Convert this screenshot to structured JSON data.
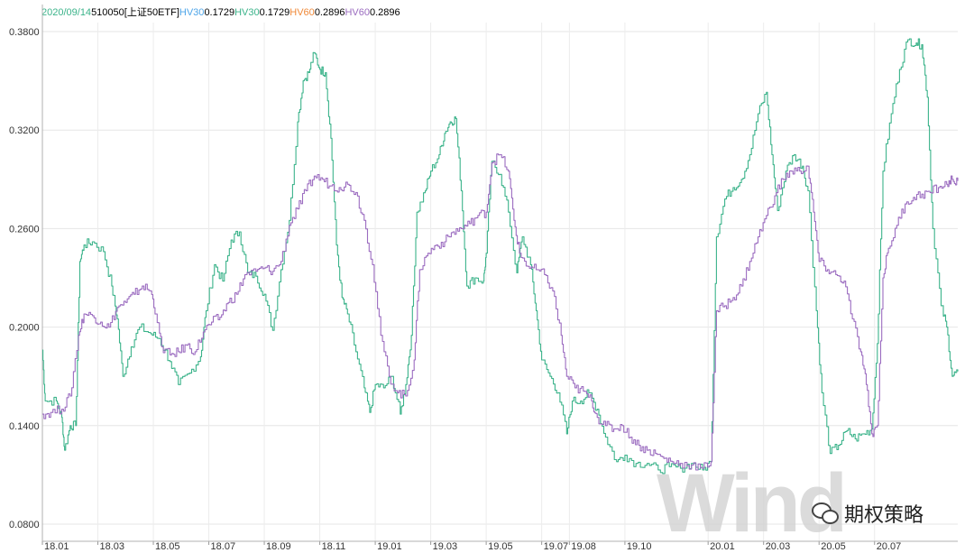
{
  "legend": {
    "date": "2020/09/14",
    "security": "510050[上证50ETF]",
    "items": [
      {
        "label": "HV30",
        "value": "0.1729",
        "label_color": "#4ea5e8"
      },
      {
        "label": "HV30",
        "value": "0.1729",
        "label_color": "#3bb38a"
      },
      {
        "label": "HV60",
        "value": "0.2896",
        "label_color": "#f08a3a"
      },
      {
        "label": "HV60",
        "value": "0.2896",
        "label_color": "#9b6cc0"
      }
    ],
    "date_color": "#3bb38a"
  },
  "chart_data": {
    "type": "line",
    "title": "",
    "xlabel": "",
    "ylabel": "",
    "ylim": [
      0.08,
      0.38
    ],
    "xlim": [
      0,
      33
    ],
    "y_ticks": [
      "0.0800",
      "0.1400",
      "0.2000",
      "0.2600",
      "0.3200",
      "0.3800"
    ],
    "x_ticks": [
      {
        "label": "18.01",
        "x": 0
      },
      {
        "label": "18.03",
        "x": 2
      },
      {
        "label": "18.05",
        "x": 4
      },
      {
        "label": "18.07",
        "x": 6
      },
      {
        "label": "18.09",
        "x": 8
      },
      {
        "label": "18.11",
        "x": 10
      },
      {
        "label": "19.01",
        "x": 12
      },
      {
        "label": "19.03",
        "x": 14
      },
      {
        "label": "19.05",
        "x": 16
      },
      {
        "label": "19.07",
        "x": 18
      },
      {
        "label": "19.08",
        "x": 19
      },
      {
        "label": "19.10",
        "x": 21
      },
      {
        "label": "20.01",
        "x": 24
      },
      {
        "label": "20.03",
        "x": 26
      },
      {
        "label": "20.05",
        "x": 28
      },
      {
        "label": "20.07",
        "x": 30
      }
    ],
    "grid": true,
    "series": [
      {
        "name": "HV30",
        "color": "#3bb38a",
        "points": [
          [
            0.0,
            0.186
          ],
          [
            0.1,
            0.155
          ],
          [
            0.5,
            0.155
          ],
          [
            0.7,
            0.145
          ],
          [
            0.8,
            0.125
          ],
          [
            1.0,
            0.14
          ],
          [
            1.2,
            0.14
          ],
          [
            1.35,
            0.24
          ],
          [
            1.5,
            0.25
          ],
          [
            1.8,
            0.252
          ],
          [
            2.2,
            0.246
          ],
          [
            2.5,
            0.225
          ],
          [
            2.7,
            0.205
          ],
          [
            2.9,
            0.17
          ],
          [
            3.2,
            0.188
          ],
          [
            3.5,
            0.2
          ],
          [
            3.9,
            0.196
          ],
          [
            4.2,
            0.193
          ],
          [
            4.6,
            0.179
          ],
          [
            4.9,
            0.165
          ],
          [
            5.3,
            0.172
          ],
          [
            5.7,
            0.182
          ],
          [
            5.9,
            0.21
          ],
          [
            6.2,
            0.238
          ],
          [
            6.5,
            0.228
          ],
          [
            6.8,
            0.253
          ],
          [
            7.1,
            0.258
          ],
          [
            7.4,
            0.233
          ],
          [
            7.7,
            0.231
          ],
          [
            8.0,
            0.22
          ],
          [
            8.3,
            0.198
          ],
          [
            8.6,
            0.235
          ],
          [
            8.9,
            0.265
          ],
          [
            9.2,
            0.325
          ],
          [
            9.4,
            0.35
          ],
          [
            9.6,
            0.355
          ],
          [
            9.8,
            0.367
          ],
          [
            10.0,
            0.357
          ],
          [
            10.2,
            0.355
          ],
          [
            10.4,
            0.315
          ],
          [
            10.6,
            0.25
          ],
          [
            10.8,
            0.218
          ],
          [
            11.0,
            0.208
          ],
          [
            11.3,
            0.185
          ],
          [
            11.6,
            0.163
          ],
          [
            11.8,
            0.148
          ],
          [
            12.0,
            0.165
          ],
          [
            12.3,
            0.163
          ],
          [
            12.6,
            0.17
          ],
          [
            12.9,
            0.147
          ],
          [
            13.1,
            0.165
          ],
          [
            13.3,
            0.195
          ],
          [
            13.5,
            0.27
          ],
          [
            13.8,
            0.283
          ],
          [
            14.0,
            0.295
          ],
          [
            14.3,
            0.305
          ],
          [
            14.5,
            0.318
          ],
          [
            14.7,
            0.325
          ],
          [
            14.9,
            0.327
          ],
          [
            15.1,
            0.283
          ],
          [
            15.3,
            0.225
          ],
          [
            15.6,
            0.23
          ],
          [
            15.9,
            0.228
          ],
          [
            16.0,
            0.245
          ],
          [
            16.2,
            0.301
          ],
          [
            16.5,
            0.293
          ],
          [
            16.8,
            0.27
          ],
          [
            17.1,
            0.233
          ],
          [
            17.3,
            0.255
          ],
          [
            17.6,
            0.238
          ],
          [
            17.8,
            0.21
          ],
          [
            18.0,
            0.18
          ],
          [
            18.3,
            0.17
          ],
          [
            18.6,
            0.16
          ],
          [
            18.9,
            0.135
          ],
          [
            19.1,
            0.155
          ],
          [
            19.4,
            0.155
          ],
          [
            19.7,
            0.16
          ],
          [
            20.0,
            0.15
          ],
          [
            20.3,
            0.133
          ],
          [
            20.7,
            0.118
          ],
          [
            21.0,
            0.122
          ],
          [
            21.4,
            0.117
          ],
          [
            21.8,
            0.117
          ],
          [
            22.2,
            0.113
          ],
          [
            22.6,
            0.115
          ],
          [
            23.0,
            0.114
          ],
          [
            23.4,
            0.117
          ],
          [
            23.8,
            0.113
          ],
          [
            24.1,
            0.118
          ],
          [
            24.3,
            0.255
          ],
          [
            24.6,
            0.278
          ],
          [
            24.9,
            0.285
          ],
          [
            25.2,
            0.29
          ],
          [
            25.5,
            0.305
          ],
          [
            25.8,
            0.33
          ],
          [
            26.1,
            0.343
          ],
          [
            26.3,
            0.305
          ],
          [
            26.5,
            0.271
          ],
          [
            26.8,
            0.295
          ],
          [
            27.1,
            0.305
          ],
          [
            27.4,
            0.298
          ],
          [
            27.6,
            0.283
          ],
          [
            27.9,
            0.21
          ],
          [
            28.1,
            0.16
          ],
          [
            28.4,
            0.123
          ],
          [
            28.7,
            0.128
          ],
          [
            29.0,
            0.137
          ],
          [
            29.3,
            0.132
          ],
          [
            29.6,
            0.135
          ],
          [
            29.9,
            0.138
          ],
          [
            30.1,
            0.19
          ],
          [
            30.3,
            0.295
          ],
          [
            30.6,
            0.33
          ],
          [
            30.9,
            0.357
          ],
          [
            31.2,
            0.375
          ],
          [
            31.5,
            0.373
          ],
          [
            31.7,
            0.372
          ],
          [
            31.9,
            0.34
          ],
          [
            32.1,
            0.26
          ],
          [
            32.4,
            0.213
          ],
          [
            32.6,
            0.2
          ],
          [
            32.8,
            0.17
          ],
          [
            33.0,
            0.173
          ]
        ]
      },
      {
        "name": "HV60",
        "color": "#9b6cc0",
        "points": [
          [
            0.0,
            0.147
          ],
          [
            0.3,
            0.148
          ],
          [
            0.7,
            0.15
          ],
          [
            1.0,
            0.158
          ],
          [
            1.3,
            0.195
          ],
          [
            1.5,
            0.208
          ],
          [
            1.8,
            0.207
          ],
          [
            2.1,
            0.203
          ],
          [
            2.4,
            0.2
          ],
          [
            2.7,
            0.212
          ],
          [
            3.0,
            0.215
          ],
          [
            3.3,
            0.22
          ],
          [
            3.6,
            0.225
          ],
          [
            3.9,
            0.222
          ],
          [
            4.1,
            0.208
          ],
          [
            4.3,
            0.188
          ],
          [
            4.6,
            0.183
          ],
          [
            4.9,
            0.185
          ],
          [
            5.2,
            0.189
          ],
          [
            5.5,
            0.185
          ],
          [
            5.8,
            0.197
          ],
          [
            6.1,
            0.203
          ],
          [
            6.4,
            0.206
          ],
          [
            6.7,
            0.215
          ],
          [
            7.0,
            0.22
          ],
          [
            7.3,
            0.232
          ],
          [
            7.7,
            0.234
          ],
          [
            8.0,
            0.236
          ],
          [
            8.3,
            0.234
          ],
          [
            8.6,
            0.24
          ],
          [
            8.9,
            0.262
          ],
          [
            9.2,
            0.272
          ],
          [
            9.5,
            0.283
          ],
          [
            9.8,
            0.292
          ],
          [
            10.1,
            0.29
          ],
          [
            10.4,
            0.286
          ],
          [
            10.7,
            0.285
          ],
          [
            11.0,
            0.287
          ],
          [
            11.3,
            0.282
          ],
          [
            11.6,
            0.265
          ],
          [
            11.9,
            0.238
          ],
          [
            12.2,
            0.195
          ],
          [
            12.5,
            0.17
          ],
          [
            12.8,
            0.16
          ],
          [
            13.1,
            0.158
          ],
          [
            13.4,
            0.18
          ],
          [
            13.6,
            0.235
          ],
          [
            13.9,
            0.245
          ],
          [
            14.2,
            0.25
          ],
          [
            14.5,
            0.252
          ],
          [
            14.8,
            0.258
          ],
          [
            15.1,
            0.26
          ],
          [
            15.4,
            0.263
          ],
          [
            15.7,
            0.268
          ],
          [
            16.0,
            0.27
          ],
          [
            16.2,
            0.3
          ],
          [
            16.5,
            0.305
          ],
          [
            16.8,
            0.295
          ],
          [
            17.0,
            0.265
          ],
          [
            17.2,
            0.245
          ],
          [
            17.5,
            0.237
          ],
          [
            17.8,
            0.235
          ],
          [
            18.1,
            0.232
          ],
          [
            18.4,
            0.222
          ],
          [
            18.7,
            0.195
          ],
          [
            18.9,
            0.17
          ],
          [
            19.2,
            0.163
          ],
          [
            19.5,
            0.161
          ],
          [
            19.8,
            0.155
          ],
          [
            20.0,
            0.145
          ],
          [
            20.3,
            0.14
          ],
          [
            20.6,
            0.138
          ],
          [
            20.9,
            0.14
          ],
          [
            21.2,
            0.133
          ],
          [
            21.5,
            0.128
          ],
          [
            21.8,
            0.125
          ],
          [
            22.1,
            0.123
          ],
          [
            22.4,
            0.12
          ],
          [
            22.7,
            0.118
          ],
          [
            23.0,
            0.117
          ],
          [
            23.4,
            0.116
          ],
          [
            23.8,
            0.114
          ],
          [
            24.1,
            0.118
          ],
          [
            24.3,
            0.21
          ],
          [
            24.6,
            0.213
          ],
          [
            24.9,
            0.218
          ],
          [
            25.2,
            0.225
          ],
          [
            25.5,
            0.24
          ],
          [
            25.8,
            0.255
          ],
          [
            26.1,
            0.268
          ],
          [
            26.4,
            0.28
          ],
          [
            26.7,
            0.29
          ],
          [
            27.0,
            0.295
          ],
          [
            27.3,
            0.295
          ],
          [
            27.6,
            0.298
          ],
          [
            27.8,
            0.27
          ],
          [
            28.0,
            0.24
          ],
          [
            28.3,
            0.235
          ],
          [
            28.6,
            0.232
          ],
          [
            28.9,
            0.228
          ],
          [
            29.2,
            0.205
          ],
          [
            29.5,
            0.185
          ],
          [
            29.7,
            0.165
          ],
          [
            29.9,
            0.135
          ],
          [
            30.1,
            0.14
          ],
          [
            30.3,
            0.23
          ],
          [
            30.5,
            0.248
          ],
          [
            30.8,
            0.262
          ],
          [
            31.1,
            0.275
          ],
          [
            31.4,
            0.279
          ],
          [
            31.7,
            0.281
          ],
          [
            32.0,
            0.282
          ],
          [
            32.3,
            0.285
          ],
          [
            32.6,
            0.287
          ],
          [
            32.8,
            0.29
          ],
          [
            33.0,
            0.289
          ]
        ]
      }
    ]
  },
  "watermark": "Wind",
  "brand": "期权策略"
}
